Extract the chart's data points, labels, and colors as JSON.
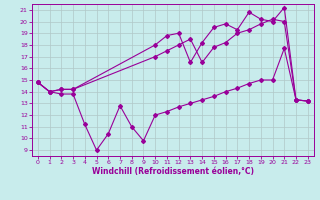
{
  "xlabel": "Windchill (Refroidissement éolien,°C)",
  "background_color": "#c8ecec",
  "line_color": "#990099",
  "grid_color": "#b0c8c8",
  "xlim": [
    -0.5,
    23.5
  ],
  "ylim": [
    8.5,
    21.5
  ],
  "xticks": [
    0,
    1,
    2,
    3,
    4,
    5,
    6,
    7,
    8,
    9,
    10,
    11,
    12,
    13,
    14,
    15,
    16,
    17,
    18,
    19,
    20,
    21,
    22,
    23
  ],
  "yticks": [
    9,
    10,
    11,
    12,
    13,
    14,
    15,
    16,
    17,
    18,
    19,
    20,
    21
  ],
  "s1x": [
    0,
    1,
    2,
    3,
    4,
    5,
    6,
    7,
    8,
    9,
    10,
    11,
    12,
    13,
    14,
    15,
    16,
    17,
    18,
    19,
    20,
    21,
    22,
    23
  ],
  "s1y": [
    14.8,
    14.0,
    13.8,
    13.8,
    11.2,
    9.0,
    10.4,
    12.8,
    11.0,
    9.8,
    12.0,
    12.3,
    12.7,
    13.0,
    13.3,
    13.6,
    14.0,
    14.3,
    14.7,
    15.0,
    15.0,
    17.7,
    13.3,
    13.2
  ],
  "s2x": [
    0,
    1,
    2,
    3,
    10,
    11,
    12,
    13,
    14,
    15,
    16,
    17,
    18,
    19,
    20,
    21,
    22,
    23
  ],
  "s2y": [
    14.8,
    14.0,
    14.2,
    14.2,
    17.0,
    17.5,
    18.0,
    18.5,
    16.5,
    17.8,
    18.2,
    19.0,
    19.3,
    19.8,
    20.2,
    20.0,
    13.3,
    13.2
  ],
  "s3x": [
    0,
    1,
    2,
    3,
    10,
    11,
    12,
    13,
    14,
    15,
    16,
    17,
    18,
    19,
    20,
    21,
    22,
    23
  ],
  "s3y": [
    14.8,
    14.0,
    14.2,
    14.2,
    18.0,
    18.8,
    19.0,
    16.5,
    18.2,
    19.5,
    19.8,
    19.3,
    20.8,
    20.2,
    20.0,
    21.2,
    13.3,
    13.2
  ],
  "figsize": [
    3.2,
    2.0
  ],
  "dpi": 100
}
